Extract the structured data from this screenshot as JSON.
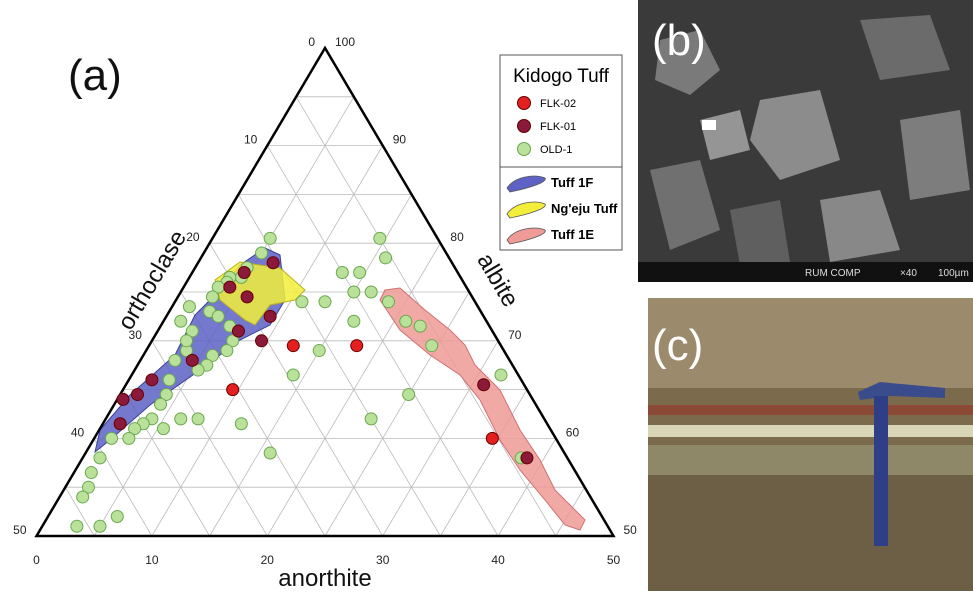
{
  "chart_data": {
    "type": "ternary",
    "panel_label": "(a)",
    "axes": {
      "anorthite": {
        "label": "anorthite",
        "ticks": [
          0,
          10,
          20,
          30,
          40,
          50
        ],
        "minor_ticks": [
          5,
          15,
          25,
          35,
          45
        ]
      },
      "orthoclase": {
        "label": "orthoclase",
        "ticks": [
          0,
          10,
          20,
          30,
          40,
          50
        ],
        "minor_ticks": [
          5,
          15,
          25,
          35,
          45
        ]
      },
      "albite": {
        "label": "albite",
        "ticks": [
          50,
          60,
          70,
          80,
          90,
          100
        ],
        "minor_ticks": [
          55,
          65,
          75,
          85,
          95
        ]
      }
    },
    "legend_title": "Kidogo Tuff",
    "series": [
      {
        "name": "FLK-02",
        "color": "#e3201f",
        "anorthite": [
          12.5,
          18,
          9.5,
          34.5
        ],
        "orthoclase": [
          18,
          12.5,
          25.5,
          5.5
        ]
      },
      {
        "name": "FLK-01",
        "color": "#8b1a3a",
        "anorthite": [
          6.5,
          4.5,
          4,
          6,
          9,
          7,
          9.5,
          4.5,
          2,
          1.5,
          0.5,
          1.5,
          31,
          38.5
        ],
        "orthoclase": [
          15.5,
          18.5,
          20.5,
          19.5,
          18.5,
          22,
          20.5,
          27.5,
          32,
          34,
          35.5,
          37,
          3.5,
          3.5
        ]
      },
      {
        "name": "OLD-1",
        "color": "#b9e19a",
        "anorthite": [
          5,
          5,
          4.5,
          4.5,
          3.5,
          3.5,
          3,
          3,
          3.5,
          4.5,
          6,
          7,
          7,
          6,
          6,
          5.5,
          3.5,
          3,
          3,
          1.5,
          1.5,
          3,
          3.5,
          4,
          4,
          4,
          3.5,
          3,
          3,
          1.5,
          1.5,
          1.5,
          2,
          2,
          3,
          5,
          6,
          5.5,
          6.5,
          8,
          12,
          16,
          14,
          15,
          13,
          14.5,
          16.5,
          14.5,
          16,
          18.5,
          21,
          22.5,
          24.5,
          16.5,
          15,
          13,
          11,
          23,
          25,
          32,
          38
        ],
        "orthoclase": [
          14.5,
          16,
          18,
          19,
          20,
          20.5,
          21.5,
          22.5,
          23.5,
          23,
          22.5,
          23,
          24,
          25.5,
          26.5,
          27.5,
          27.5,
          26,
          27,
          26.5,
          25,
          29,
          30.5,
          31.5,
          32.5,
          34,
          35,
          36,
          37,
          38.5,
          40.5,
          42,
          43,
          44,
          46,
          44,
          42,
          33.5,
          31.5,
          30,
          26.5,
          25.5,
          19.5,
          16,
          10,
          8.5,
          8.5,
          5,
          5.5,
          7.5,
          7,
          6,
          6,
          11.5,
          10,
          13,
          15,
          15,
          10.5,
          1.5,
          4
        ]
      }
    ],
    "fields": [
      {
        "name": "Tuff 1F",
        "color": "#5d62c4"
      },
      {
        "name": "Ng'eju Tuff",
        "color": "#f2ee3a"
      },
      {
        "name": "Tuff 1E",
        "color": "#ee9a96"
      }
    ]
  },
  "panels": [
    {
      "label": "(b)",
      "caption_left": "RUM COMP",
      "magnification": "×40",
      "scale_bar": "100µm"
    },
    {
      "label": "(c)"
    }
  ]
}
